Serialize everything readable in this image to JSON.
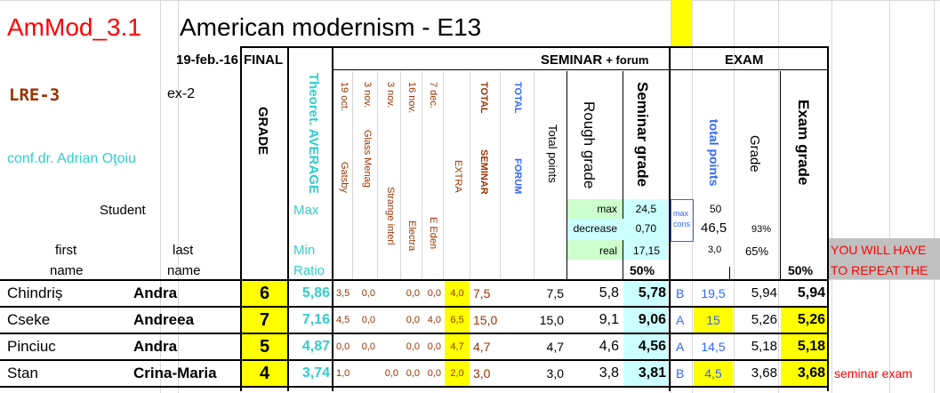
{
  "header": {
    "code": "AmMod_3.1",
    "title": "American modernism - E13",
    "date": "19-feb.-16",
    "final": "FINAL",
    "group": "LRE-3",
    "ex": "ex-2",
    "teacher": "conf.dr. Adrian Oţoiu",
    "student": "Student",
    "first": "first",
    "name1": "name",
    "last": "last",
    "name2": "name"
  },
  "columns": {
    "grade": "GRADE",
    "theoret_average": "Theoret. AVERAGE",
    "max": "Max",
    "min": "Min",
    "ratio": "Ratio",
    "seminar_forum": "SEMINAR",
    "plus_forum": "+ forum",
    "exam": "EXAM",
    "s1_date": "19 oct.",
    "s1_name": "Gatsby",
    "s2_date": "3 nov.",
    "s2_name": "Glass Menag",
    "s3_date": "3 nov.",
    "s3_name": "Strange interl",
    "s4_date": "16 nov.",
    "s4_name": "Electra",
    "s5_date": "7 dec.",
    "s5_name": "E Eden",
    "extra": "EXTRA",
    "total_seminar_a": "TOTAL",
    "total_seminar_b": "SEMINAR",
    "total_forum_a": "TOTAL",
    "total_forum_b": "FORUM",
    "total_points": "Total points",
    "rough_grade": "Rough grade",
    "seminar_grade": "Seminar grade",
    "exam_total_points": "total points",
    "exam_grade_small": "Grade",
    "exam_grade": "Exam grade",
    "pct50a": "50%",
    "pct50b": "50%",
    "max_label": "max",
    "max_val": "24,5",
    "decrease_label": "decrease",
    "decrease_val": "0,70",
    "real_label": "real",
    "real_val": "17,15",
    "maxcons_a": "max",
    "maxcons_b": "cons",
    "exam_max": "50",
    "exam_mid": "46,5",
    "exam_low": "3,0",
    "pct93": "93%",
    "pct65": "65%",
    "repeat_a": "YOU WILL HAVE",
    "repeat_b": "TO REPEAT THE"
  },
  "rows": [
    {
      "first": "Chindriș",
      "last": "Andra",
      "grade": "6",
      "avg": "5,86",
      "s1": "3,5",
      "s2": "0,0",
      "s3": "",
      "s4": "0,0",
      "s5": "0,0",
      "extra": "4,0",
      "tsem": "7,5",
      "tforum": "",
      "tpoints": "7,5",
      "rough": "5,8",
      "semgrade": "5,78",
      "exl": "B",
      "expts": "19,5",
      "exgr": "5,94",
      "exam": "5,94",
      "note": ""
    },
    {
      "first": "Cseke",
      "last": "Andreea",
      "grade": "7",
      "avg": "7,16",
      "s1": "4,5",
      "s2": "0,0",
      "s3": "",
      "s4": "0,0",
      "s5": "4,0",
      "extra": "6,5",
      "tsem": "15,0",
      "tforum": "",
      "tpoints": "15,0",
      "rough": "9,1",
      "semgrade": "9,06",
      "exl": "A",
      "expts": "15",
      "exgr": "5,26",
      "exam": "5,26",
      "note": ""
    },
    {
      "first": "Pinciuc",
      "last": "Andra",
      "grade": "5",
      "avg": "4,87",
      "s1": "0,0",
      "s2": "0,0",
      "s3": "",
      "s4": "0,0",
      "s5": "0,0",
      "extra": "4,7",
      "tsem": "4,7",
      "tforum": "",
      "tpoints": "4,7",
      "rough": "4,6",
      "semgrade": "4,56",
      "exl": "A",
      "expts": "14,5",
      "exgr": "5,18",
      "exam": "5,18",
      "note": ""
    },
    {
      "first": "Stan",
      "last": "Crina-Maria",
      "grade": "4",
      "avg": "3,74",
      "s1": "1,0",
      "s2": "",
      "s3": "0,0",
      "s4": "0,0",
      "s5": "0,0",
      "extra": "2,0",
      "tsem": "3,0",
      "tforum": "",
      "tpoints": "3,0",
      "rough": "3,8",
      "semgrade": "3,81",
      "exl": "B",
      "expts": "4,5",
      "exgr": "3,68",
      "exam": "3,68",
      "note": "seminar  exam"
    }
  ],
  "colors": {
    "title_red": "#ff0000",
    "cyan_text": "#33cccc",
    "brown": "#993300",
    "blue": "#3366ff",
    "yellow": "#ffff00"
  }
}
